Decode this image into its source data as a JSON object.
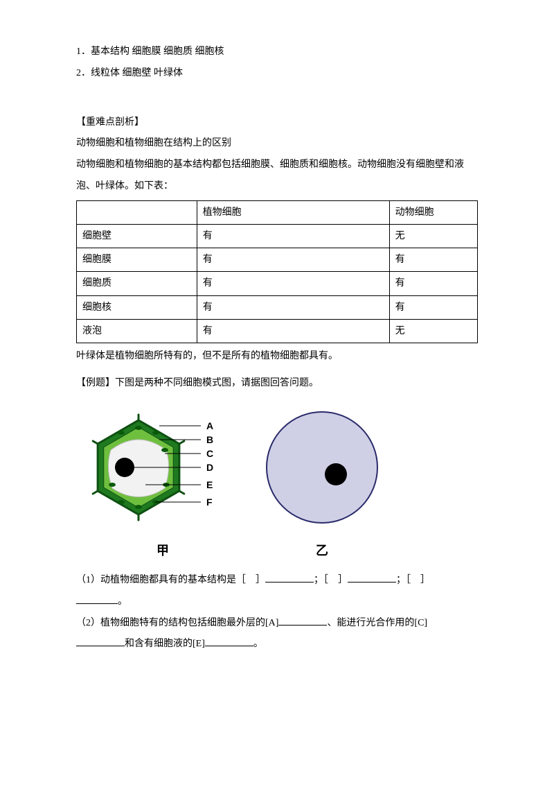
{
  "lines": {
    "l1": "1．基本结构 细胞膜 细胞质 细胞核",
    "l2": "2．线粒体 细胞壁 叶绿体"
  },
  "section_title": "【重难点剖析】",
  "analysis": {
    "p1": "动物细胞和植物细胞在结构上的区别",
    "p2": "动物细胞和植物细胞的基本结构都包括细胞膜、细胞质和细胞核。动物细胞没有细胞壁和液泡、叶绿体。如下表：",
    "note": "叶绿体是植物细胞所特有的，但不是所有的植物细胞都具有。"
  },
  "table": {
    "header": [
      "",
      "植物细胞",
      "动物细胞"
    ],
    "rows": [
      [
        "细胞壁",
        "有",
        "无"
      ],
      [
        "细胞膜",
        "有",
        "有"
      ],
      [
        "细胞质",
        "有",
        "有"
      ],
      [
        "细胞核",
        "有",
        "有"
      ],
      [
        "液泡",
        "有",
        "无"
      ]
    ]
  },
  "example": {
    "title": "【例题】下图是两种不同细胞模式图，请据图回答问题。",
    "caption_left": "甲",
    "caption_right": "乙",
    "q1_a": "（1）动植物细胞都具有的基本结构是［　］",
    "q1_b": "；［　］",
    "q1_c": "；［　］",
    "q1_end": "。",
    "q2_a": "（2）植物细胞特有的结构包括细胞最外层的[A]",
    "q2_b": "、能进行光合作用的[C]",
    "q2_c": "和含有细胞液的[E]",
    "q2_end": "。"
  },
  "diagram": {
    "plant": {
      "wall_fill": "#1f7a1f",
      "wall_stroke": "#0e5012",
      "membrane_fill": "#6fbf3f",
      "vacuole_fill": "#f2f2f2",
      "vacuole_stroke": "#bfbfbf",
      "nucleus_fill": "#000000",
      "chloroplast_fill": "#0a5a0a",
      "label_color": "#000000",
      "label_line": "#000000",
      "labels": [
        "A",
        "B",
        "C",
        "D",
        "E",
        "F"
      ],
      "label_fontsize": 14
    },
    "animal": {
      "fill": "#cfd0e6",
      "stroke": "#2a2a6a",
      "nucleus_fill": "#000000",
      "radius": 80
    }
  }
}
